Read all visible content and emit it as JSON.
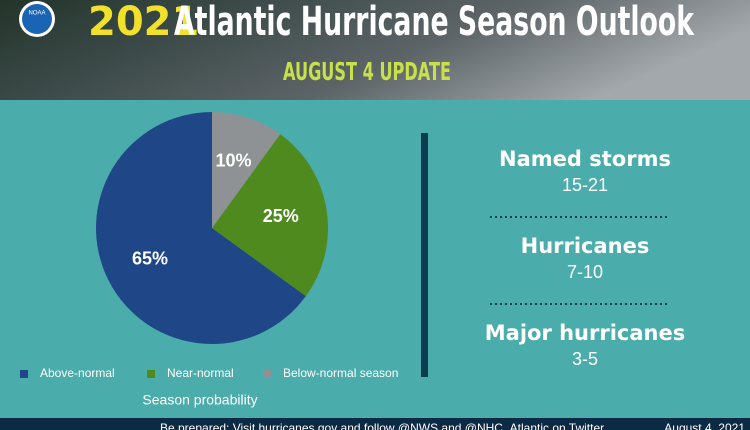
{
  "header": {
    "logo": "NOAA",
    "title_year": "2021",
    "title": "Atlantic Hurricane Season Outlook",
    "subtitle": "AUGUST 4 UPDATE"
  },
  "chart_data": {
    "type": "pie",
    "legend_title": "Season probability",
    "categories": [
      "Above-normal",
      "Near-normal",
      "Below-normal season"
    ],
    "values": [
      65,
      25,
      10
    ],
    "value_labels": [
      "65%",
      "25%",
      "10%"
    ],
    "colors": [
      "#1f4787",
      "#4f8a1f",
      "#8f9294"
    ],
    "direction": "counterclockwise",
    "legend": "bottom"
  },
  "stats": [
    {
      "label": "Named storms",
      "value": "15-21"
    },
    {
      "label": "Hurricanes",
      "value": "7-10"
    },
    {
      "label": "Major hurricanes",
      "value": "3-5"
    }
  ],
  "footer": {
    "text": "Be prepared: Visit hurricanes.gov and follow @NWS and @NHC_Atlantic on Twitter.",
    "date": "August 4, 2021"
  }
}
